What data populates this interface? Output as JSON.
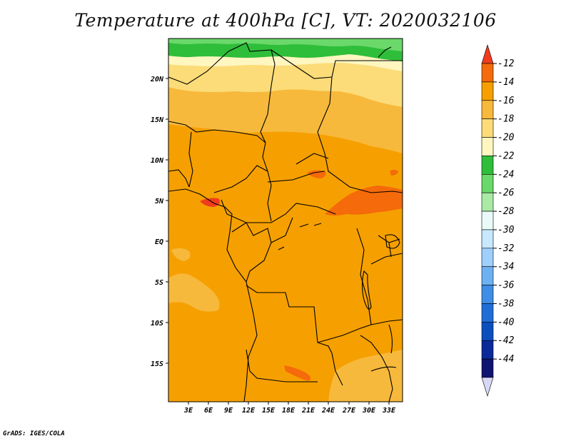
{
  "title": "Temperature at 400hPa [C], VT: 2020032106",
  "footer": "GrADS: IGES/COLA",
  "map": {
    "lat_labels": [
      "20N",
      "15N",
      "10N",
      "5N",
      "EQ",
      "5S",
      "10S",
      "15S"
    ],
    "lon_labels": [
      "3E",
      "6E",
      "9E",
      "12E",
      "15E",
      "18E",
      "21E",
      "24E",
      "27E",
      "30E",
      "33E"
    ]
  },
  "colorbar": {
    "labels": [
      "-12",
      "-14",
      "-16",
      "-18",
      "-20",
      "-22",
      "-24",
      "-26",
      "-28",
      "-30",
      "-32",
      "-34",
      "-36",
      "-38",
      "-40",
      "-42",
      "-44"
    ],
    "colors": [
      "#f03c1e",
      "#f56a0a",
      "#f5a000",
      "#f7b93c",
      "#fbdc78",
      "#fff6c0",
      "#2fbe3a",
      "#6ad86a",
      "#a9eaa5",
      "#e8fbf8",
      "#c8e8ff",
      "#9ed0fb",
      "#6eb1f2",
      "#3f8de6",
      "#1f6ed8",
      "#0b4fbf",
      "#0a2a9a",
      "#0e1470",
      "#d8d8f4"
    ]
  }
}
